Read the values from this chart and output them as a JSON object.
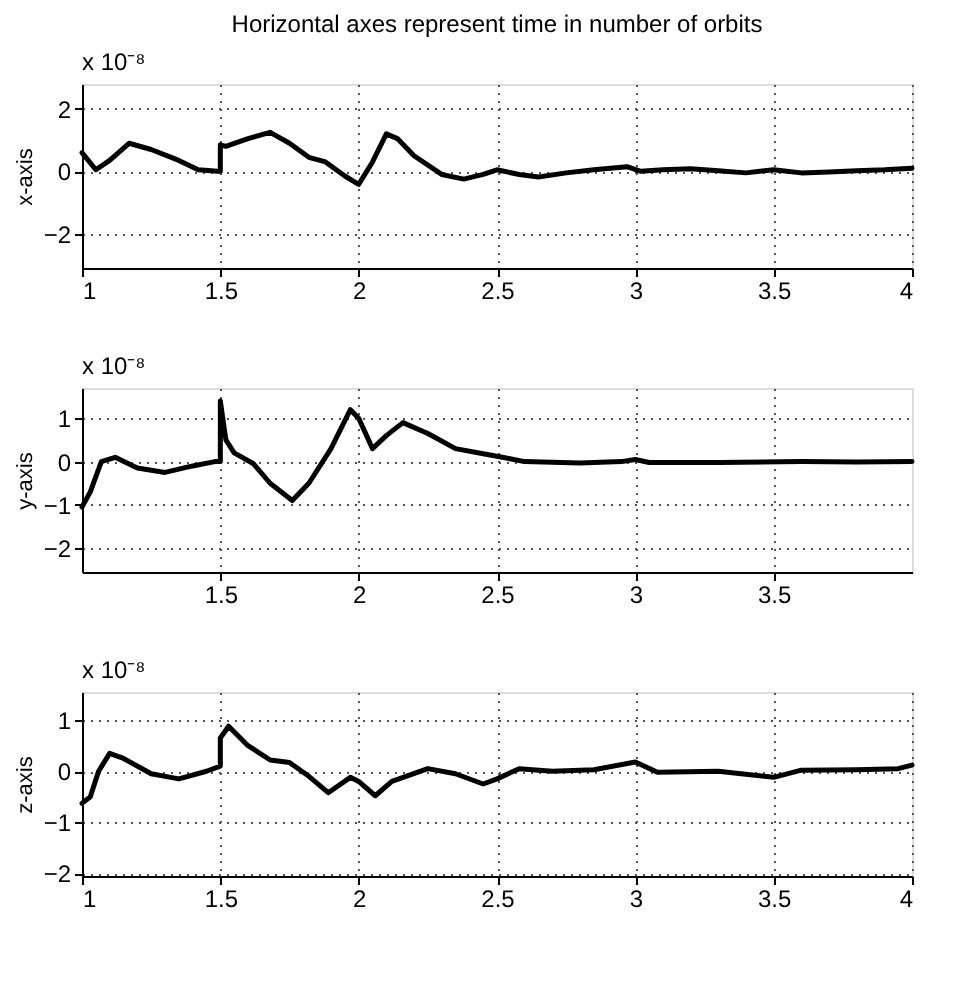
{
  "chart_data": [
    {
      "type": "line",
      "title": "Horizontal axes represent time in number of orbits",
      "ylabel": "x-axis",
      "annotations": [
        "x 10⁻⁸"
      ],
      "xlim": [
        1,
        4
      ],
      "ylim": [
        -3.1,
        2.8
      ],
      "xticks": [
        1,
        1.5,
        2,
        2.5,
        3,
        3.5,
        4
      ],
      "yticks": [
        -2,
        0,
        2
      ],
      "grid": true,
      "line_style": "solid",
      "marker": "none",
      "series": [
        {
          "color": "#000000",
          "x": [
            1.0,
            1.05,
            1.1,
            1.17,
            1.25,
            1.35,
            1.42,
            1.49,
            1.5,
            1.5,
            1.52,
            1.6,
            1.68,
            1.75,
            1.82,
            1.88,
            1.95,
            2.0,
            2.05,
            2.1,
            2.14,
            2.2,
            2.3,
            2.38,
            2.45,
            2.5,
            2.58,
            2.65,
            2.75,
            2.85,
            2.97,
            3.02,
            3.1,
            3.2,
            3.3,
            3.4,
            3.5,
            3.6,
            3.7,
            3.8,
            3.9,
            4.0
          ],
          "values": [
            0.6,
            0.05,
            0.35,
            0.9,
            0.7,
            0.35,
            0.05,
            0.0,
            0.0,
            0.85,
            0.8,
            1.05,
            1.25,
            0.9,
            0.45,
            0.3,
            -0.15,
            -0.42,
            0.3,
            1.2,
            1.05,
            0.5,
            -0.1,
            -0.25,
            -0.1,
            0.05,
            -0.1,
            -0.18,
            -0.05,
            0.05,
            0.15,
            0.0,
            0.05,
            0.08,
            0.02,
            -0.05,
            0.05,
            -0.05,
            -0.02,
            0.02,
            0.05,
            0.1
          ]
        }
      ]
    },
    {
      "type": "line",
      "ylabel": "y-axis",
      "annotations": [
        "x 10⁻⁸"
      ],
      "xlim": [
        1,
        4
      ],
      "ylim": [
        -2.55,
        1.7
      ],
      "xticks": [
        1.5,
        2,
        2.5,
        3,
        3.5
      ],
      "yticks": [
        -2,
        -1,
        0,
        1
      ],
      "grid": true,
      "line_style": "solid",
      "marker": "none",
      "series": [
        {
          "color": "#000000",
          "x": [
            1.0,
            1.03,
            1.07,
            1.12,
            1.2,
            1.3,
            1.4,
            1.48,
            1.5,
            1.5,
            1.52,
            1.55,
            1.62,
            1.68,
            1.76,
            1.82,
            1.9,
            1.97,
            2.0,
            2.05,
            2.1,
            2.16,
            2.25,
            2.35,
            2.45,
            2.52,
            2.6,
            2.8,
            2.95,
            3.0,
            3.05,
            3.3,
            3.6,
            3.8,
            4.0
          ],
          "values": [
            -1.05,
            -0.7,
            0.0,
            0.1,
            -0.15,
            -0.25,
            -0.1,
            0.0,
            0.0,
            1.4,
            0.5,
            0.2,
            -0.05,
            -0.5,
            -0.9,
            -0.5,
            0.3,
            1.2,
            1.0,
            0.3,
            0.6,
            0.9,
            0.65,
            0.3,
            0.18,
            0.1,
            0.0,
            -0.03,
            0.0,
            0.05,
            -0.02,
            -0.02,
            0.0,
            -0.01,
            0.0
          ]
        }
      ]
    },
    {
      "type": "line",
      "ylabel": "z-axis",
      "annotations": [
        "x 10⁻⁸"
      ],
      "xlim": [
        1,
        4
      ],
      "ylim": [
        -2.05,
        1.55
      ],
      "xticks": [
        1,
        1.5,
        2,
        2.5,
        3,
        3.5,
        4
      ],
      "yticks": [
        -2,
        -1,
        0,
        1
      ],
      "grid": true,
      "line_style": "solid",
      "marker": "none",
      "series": [
        {
          "color": "#000000",
          "x": [
            1.0,
            1.03,
            1.06,
            1.1,
            1.15,
            1.25,
            1.35,
            1.45,
            1.5,
            1.5,
            1.53,
            1.6,
            1.68,
            1.75,
            1.82,
            1.89,
            1.97,
            2.0,
            2.06,
            2.12,
            2.25,
            2.35,
            2.45,
            2.5,
            2.58,
            2.7,
            2.85,
            3.0,
            3.08,
            3.3,
            3.5,
            3.6,
            3.8,
            3.95,
            4.0
          ],
          "values": [
            -0.63,
            -0.5,
            0.0,
            0.35,
            0.25,
            -0.05,
            -0.15,
            0.0,
            0.1,
            0.65,
            0.88,
            0.5,
            0.22,
            0.17,
            -0.1,
            -0.42,
            -0.12,
            -0.2,
            -0.48,
            -0.2,
            0.05,
            -0.05,
            -0.25,
            -0.15,
            0.05,
            0.0,
            0.03,
            0.18,
            -0.02,
            0.0,
            -0.12,
            0.02,
            0.03,
            0.05,
            0.12
          ]
        }
      ]
    }
  ]
}
